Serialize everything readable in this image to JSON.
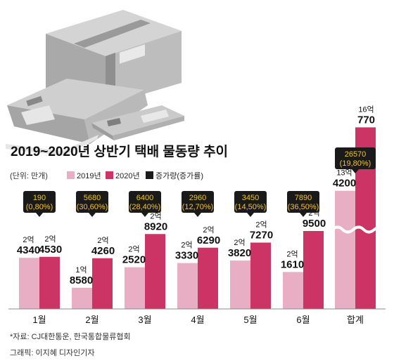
{
  "chart_data": {
    "type": "bar",
    "title": "2019~2020년 상반기 택배 물동량 추이",
    "unit_label": "(단위: 만개)",
    "categories": [
      "1월",
      "2월",
      "3월",
      "4월",
      "5월",
      "6월",
      "합계"
    ],
    "series": [
      {
        "name": "2019년",
        "color": "#e8afc4",
        "values": [
          24340,
          18580,
          22520,
          23330,
          23820,
          21610,
          134200
        ],
        "labels": [
          [
            "2억",
            "4340"
          ],
          [
            "1억",
            "8580"
          ],
          [
            "2억",
            "2520"
          ],
          [
            "2억",
            "3330"
          ],
          [
            "2억",
            "3820"
          ],
          [
            "2억",
            "1610"
          ],
          [
            "13억",
            "4200"
          ]
        ]
      },
      {
        "name": "2020년",
        "color": "#cc3466",
        "values": [
          24530,
          24260,
          28920,
          26290,
          27270,
          29500,
          160770
        ],
        "labels": [
          [
            "2억",
            "4530"
          ],
          [
            "2억",
            "4260"
          ],
          [
            "2억",
            "8920"
          ],
          [
            "2억",
            "6290"
          ],
          [
            "2억",
            "7270"
          ],
          [
            "2억",
            "9500"
          ],
          [
            "16억",
            "770"
          ]
        ]
      }
    ],
    "increase": {
      "name": "증가량(증가률)",
      "color": "#1a1a1a",
      "values": [
        190,
        5680,
        6400,
        2960,
        3450,
        7890,
        26570
      ],
      "labels": [
        [
          "190",
          "(0,80%)"
        ],
        [
          "5680",
          "(30,60%)"
        ],
        [
          "6400",
          "(28,40%)"
        ],
        [
          "2960",
          "(12,70%)"
        ],
        [
          "3450",
          "(14,50%)"
        ],
        [
          "7890",
          "(36,50%)"
        ],
        [
          "26570",
          "(19,80%)"
        ]
      ]
    },
    "axis_break": "합계",
    "grid": false,
    "legend_position": "top-left"
  },
  "source": "*자료: CJ대한통운, 한국통합물류협회",
  "credit": "그래픽: 이지혜 디자인기자",
  "colors": {
    "text": "#111111",
    "label_bg": "#1a1a1a",
    "label_text": "#f2c230",
    "baseline": "#888888"
  }
}
